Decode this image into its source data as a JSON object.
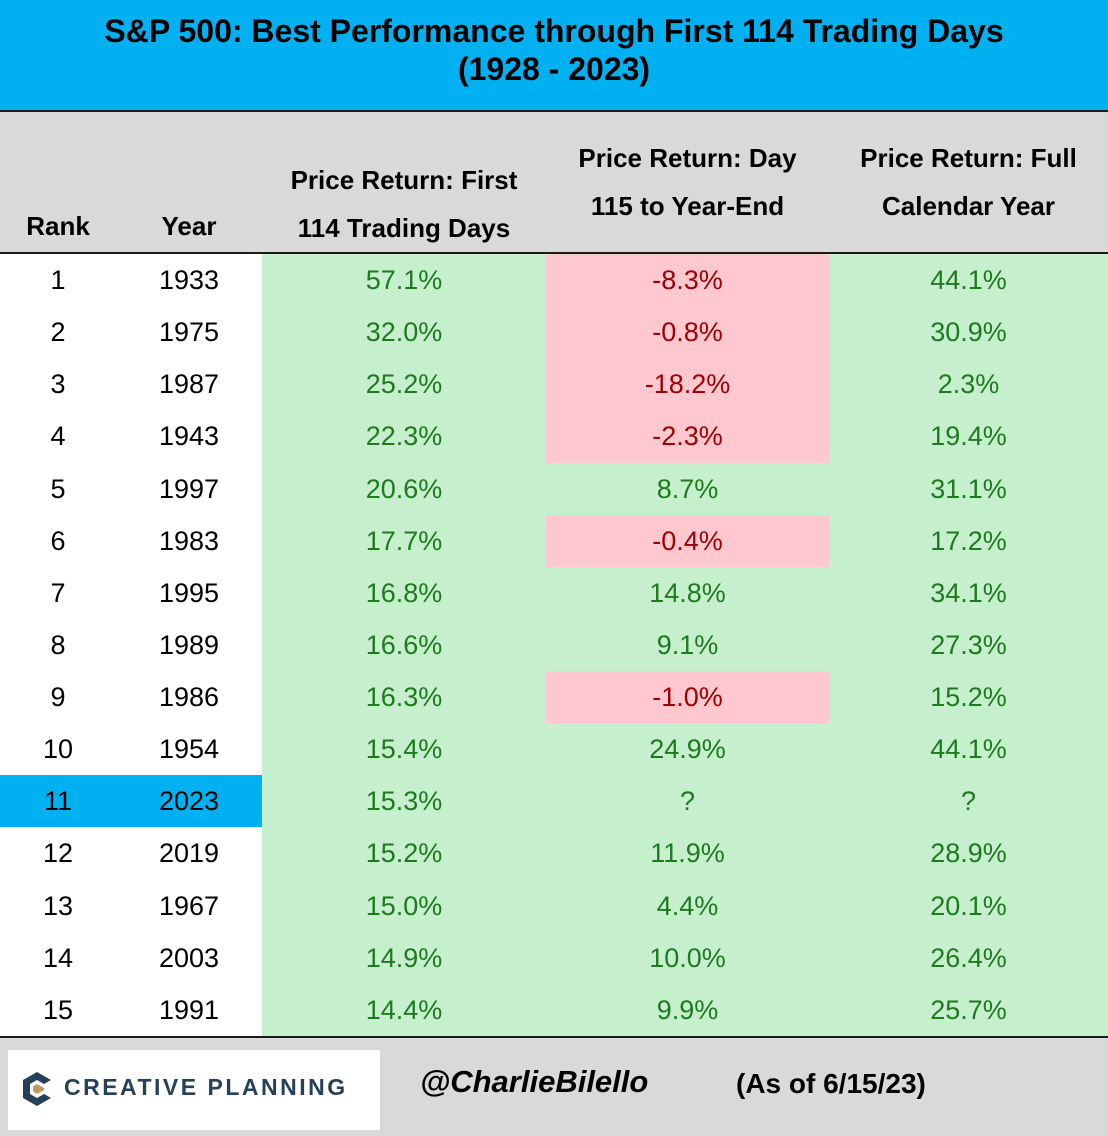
{
  "title": {
    "line1": "S&P 500: Best Performance through First 114 Trading Days",
    "line2": "(1928 - 2023)"
  },
  "headers": {
    "rank": "Rank",
    "year": "Year",
    "first": "Price Return: First\n114 Trading Days",
    "day": "Price Return: Day\n115 to Year-End",
    "full": "Price Return: Full\nCalendar  Year"
  },
  "colors": {
    "title_band": "#00b0f0",
    "header_band": "#d9d9d9",
    "positive_fill": "#c6efce",
    "positive_text": "#1e7a1e",
    "negative_fill": "#ffc7ce",
    "negative_text": "#9c0006",
    "highlight": "#00b0f0"
  },
  "chart_data": {
    "type": "table",
    "columns": [
      "Rank",
      "Year",
      "Price Return: First 114 Trading Days",
      "Price Return: Day 115 to Year-End",
      "Price Return: Full Calendar  Year"
    ],
    "highlight_year": "2023",
    "rows": [
      {
        "rank": "1",
        "year": "1933",
        "first": "57.1%",
        "day": "-8.3%",
        "full": "44.1%"
      },
      {
        "rank": "2",
        "year": "1975",
        "first": "32.0%",
        "day": "-0.8%",
        "full": "30.9%"
      },
      {
        "rank": "3",
        "year": "1987",
        "first": "25.2%",
        "day": "-18.2%",
        "full": "2.3%"
      },
      {
        "rank": "4",
        "year": "1943",
        "first": "22.3%",
        "day": "-2.3%",
        "full": "19.4%"
      },
      {
        "rank": "5",
        "year": "1997",
        "first": "20.6%",
        "day": "8.7%",
        "full": "31.1%"
      },
      {
        "rank": "6",
        "year": "1983",
        "first": "17.7%",
        "day": "-0.4%",
        "full": "17.2%"
      },
      {
        "rank": "7",
        "year": "1995",
        "first": "16.8%",
        "day": "14.8%",
        "full": "34.1%"
      },
      {
        "rank": "8",
        "year": "1989",
        "first": "16.6%",
        "day": "9.1%",
        "full": "27.3%"
      },
      {
        "rank": "9",
        "year": "1986",
        "first": "16.3%",
        "day": "-1.0%",
        "full": "15.2%"
      },
      {
        "rank": "10",
        "year": "1954",
        "first": "15.4%",
        "day": "24.9%",
        "full": "44.1%"
      },
      {
        "rank": "11",
        "year": "2023",
        "first": "15.3%",
        "day": "?",
        "full": "?"
      },
      {
        "rank": "12",
        "year": "2019",
        "first": "15.2%",
        "day": "11.9%",
        "full": "28.9%"
      },
      {
        "rank": "13",
        "year": "1967",
        "first": "15.0%",
        "day": "4.4%",
        "full": "20.1%"
      },
      {
        "rank": "14",
        "year": "2003",
        "first": "14.9%",
        "day": "10.0%",
        "full": "26.4%"
      },
      {
        "rank": "15",
        "year": "1991",
        "first": "14.4%",
        "day": "9.9%",
        "full": "25.7%"
      }
    ]
  },
  "footer": {
    "logo_text": "CREATIVE PLANNING",
    "logo_icon": "creative-planning-logo-icon",
    "handle": "@CharlieBilello",
    "as_of": "(As of 6/15/23)"
  }
}
